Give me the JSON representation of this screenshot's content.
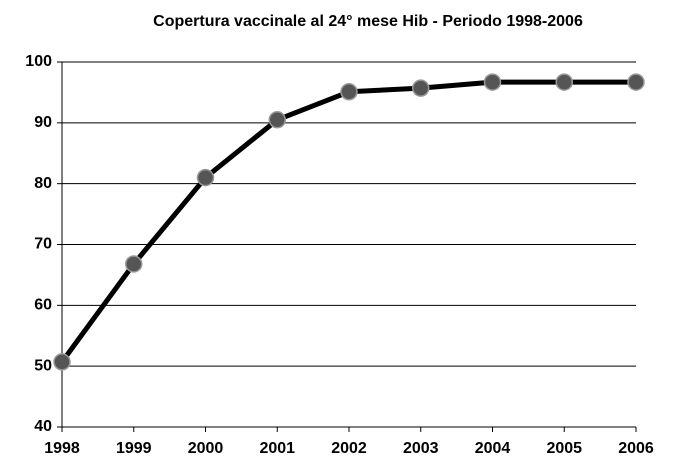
{
  "chart_data": {
    "type": "line",
    "title": "Copertura vaccinale al 24° mese Hib - Periodo 1998-2006",
    "x": [
      1998,
      1999,
      2000,
      2001,
      2002,
      2003,
      2004,
      2005,
      2006
    ],
    "series": [
      {
        "name": "Hib",
        "color": "#000000",
        "values": [
          50.7,
          66.8,
          81,
          90.5,
          95.1,
          95.7,
          96.7,
          96.7,
          96.7
        ]
      }
    ],
    "xlim": [
      1998,
      2006
    ],
    "xticks": [
      1998,
      1999,
      2000,
      2001,
      2002,
      2003,
      2004,
      2005,
      2006
    ],
    "ylim": [
      40,
      100
    ],
    "yticks": [
      40,
      50,
      60,
      70,
      80,
      90,
      100
    ],
    "grid": true,
    "marker_color": "#555555"
  }
}
